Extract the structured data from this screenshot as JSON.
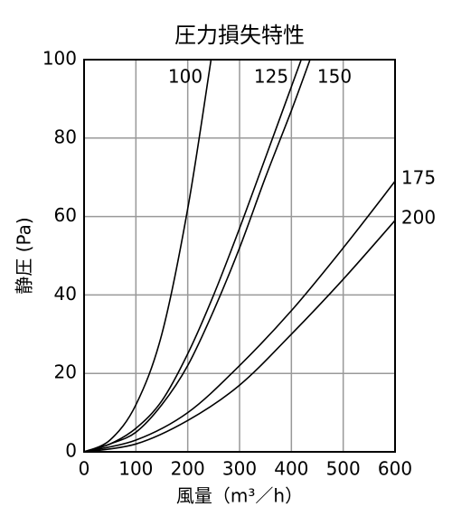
{
  "chart_data": {
    "type": "line",
    "title": "圧力損失特性",
    "x_label": "風量（m³／h）",
    "y_label": "静圧 (Pa)",
    "xlim": [
      0,
      600
    ],
    "xticks": [
      0,
      100,
      200,
      300,
      400,
      500,
      600
    ],
    "ylim": [
      0,
      100
    ],
    "yticks": [
      0,
      20,
      40,
      60,
      80,
      100
    ],
    "grid": true,
    "series": [
      {
        "name": "100",
        "color": "#000000",
        "x": [
          0,
          50,
          100,
          150,
          200,
          245
        ],
        "values": [
          0,
          3,
          12,
          30,
          62,
          100
        ]
      },
      {
        "name": "125",
        "color": "#000000",
        "x": [
          0,
          50,
          100,
          150,
          200,
          250,
          300,
          350,
          419
        ],
        "values": [
          0,
          2,
          6,
          13,
          25,
          40,
          57,
          75,
          100
        ]
      },
      {
        "name": "150",
        "color": "#000000",
        "x": [
          0,
          50,
          100,
          150,
          200,
          250,
          300,
          350,
          400,
          436
        ],
        "values": [
          0,
          2,
          5,
          12,
          22,
          36,
          52,
          70,
          87,
          100
        ]
      },
      {
        "name": "175",
        "color": "#000000",
        "x": [
          0,
          100,
          200,
          300,
          400,
          500,
          600
        ],
        "values": [
          0,
          3,
          10,
          22,
          36,
          52,
          69
        ]
      },
      {
        "name": "200",
        "color": "#000000",
        "x": [
          0,
          100,
          200,
          300,
          400,
          500,
          600
        ],
        "values": [
          0,
          2,
          8,
          17,
          30,
          44,
          59
        ]
      }
    ]
  }
}
